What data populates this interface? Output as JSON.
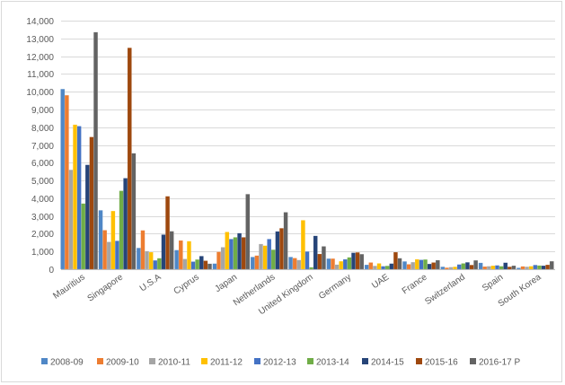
{
  "chart_data": {
    "type": "bar",
    "title": "",
    "xlabel": "",
    "ylabel": "",
    "ylim": [
      0,
      14000
    ],
    "yticks": [
      0,
      1000,
      2000,
      3000,
      4000,
      5000,
      6000,
      7000,
      8000,
      9000,
      10000,
      11000,
      12000,
      13000,
      14000
    ],
    "ytick_labels": [
      "0",
      "1,000",
      "2,000",
      "3,000",
      "4,000",
      "5,000",
      "6,000",
      "7,000",
      "8,000",
      "9,000",
      "10,000",
      "11,000",
      "12,000",
      "13,000",
      "14,000"
    ],
    "grid": true,
    "legend_position": "bottom",
    "categories": [
      "Mauritius",
      "Singapore",
      "U.S.A",
      "Cyprus",
      "Japan",
      "Netherlands",
      "United Kingdom",
      "Germany",
      "UAE",
      "France",
      "Switzerland",
      "Spain",
      "South Korea"
    ],
    "series": [
      {
        "name": "2008-09",
        "color": "#4f87c6",
        "values": [
          10150,
          3320,
          1200,
          1080,
          320,
          690,
          690,
          600,
          250,
          440,
          140,
          360,
          80
        ]
      },
      {
        "name": "2009-10",
        "color": "#ed7d31",
        "values": [
          9800,
          2200,
          2190,
          1620,
          980,
          770,
          630,
          600,
          380,
          280,
          90,
          150,
          160
        ]
      },
      {
        "name": "2010-11",
        "color": "#a5a5a5",
        "values": [
          5600,
          1540,
          1020,
          580,
          1240,
          1420,
          520,
          260,
          190,
          400,
          120,
          170,
          140
        ]
      },
      {
        "name": "2011-12",
        "color": "#ffc000",
        "values": [
          8140,
          3280,
          960,
          1580,
          2100,
          1330,
          2760,
          450,
          330,
          560,
          140,
          200,
          170
        ]
      },
      {
        "name": "2012-13",
        "color": "#4472c4",
        "values": [
          8060,
          1600,
          500,
          430,
          1700,
          1700,
          1000,
          560,
          170,
          530,
          270,
          220,
          240
        ]
      },
      {
        "name": "2013-14",
        "color": "#70ad47",
        "values": [
          3700,
          4420,
          620,
          550,
          1800,
          1100,
          110,
          670,
          190,
          550,
          330,
          170,
          210
        ]
      },
      {
        "name": "2014-15",
        "color": "#264478",
        "values": [
          5880,
          5130,
          1950,
          740,
          2030,
          2130,
          1880,
          930,
          320,
          300,
          390,
          370,
          200
        ]
      },
      {
        "name": "2015-16",
        "color": "#9e480e",
        "values": [
          7450,
          12470,
          4110,
          480,
          1800,
          2310,
          860,
          950,
          960,
          380,
          240,
          140,
          250
        ]
      },
      {
        "name": "2016-17 P",
        "color": "#636363",
        "values": [
          13350,
          6530,
          2140,
          310,
          4230,
          3210,
          1290,
          850,
          620,
          510,
          500,
          200,
          450
        ]
      }
    ]
  }
}
